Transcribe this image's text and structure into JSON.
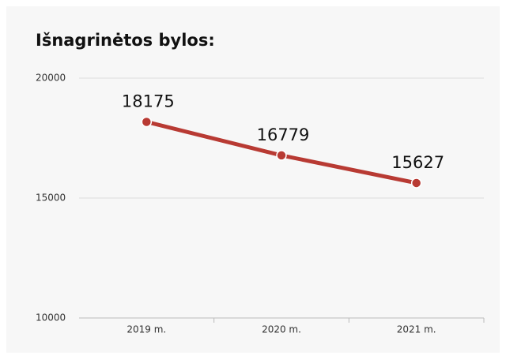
{
  "chart_data": {
    "type": "line",
    "title": "Išnagrinėtos bylos:",
    "categories": [
      "2019 m.",
      "2020 m.",
      "2021 m."
    ],
    "series": [
      {
        "name": null,
        "color": "#b83a33",
        "values": [
          18175,
          16779,
          15627
        ]
      }
    ],
    "ylim": [
      10000,
      20000
    ],
    "yticks": [
      10000,
      15000,
      20000
    ],
    "grid": true
  }
}
